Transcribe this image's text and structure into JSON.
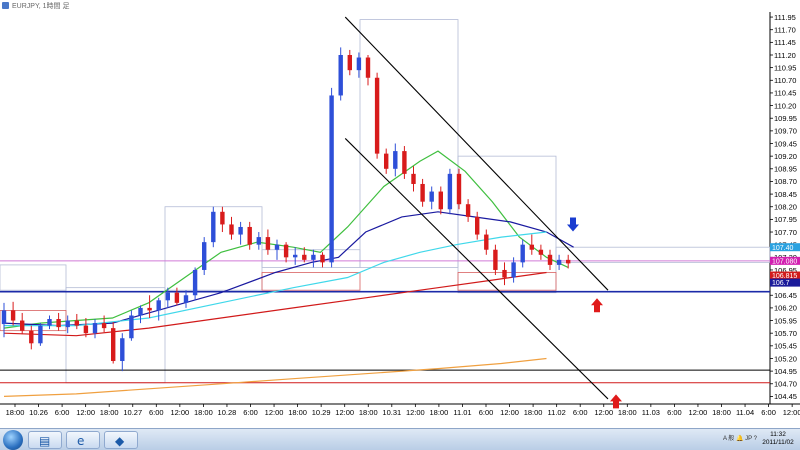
{
  "window": {
    "title": "EURJPY, 1時間 足"
  },
  "chart_data": {
    "type": "candlestick",
    "symbol": "EURJPY",
    "timeframe": "1時間",
    "y_range": [
      104.3,
      112.05
    ],
    "price_labels": [
      "111.95",
      "111.70",
      "111.45",
      "111.20",
      "110.95",
      "110.70",
      "110.45",
      "110.20",
      "109.95",
      "109.70",
      "109.45",
      "109.20",
      "108.95",
      "108.70",
      "108.45",
      "108.20",
      "107.95",
      "107.70",
      "107.45",
      "107.20",
      "106.95",
      "106.70",
      "106.45",
      "106.20",
      "105.95",
      "105.70",
      "105.45",
      "105.20",
      "104.95",
      "104.70",
      "104.45"
    ],
    "time_labels": [
      "18:00",
      "10.26",
      "6:00",
      "12:00",
      "18:00",
      "10.27",
      "6:00",
      "12:00",
      "18:00",
      "10.28",
      "6:00",
      "12:00",
      "18:00",
      "10.29",
      "12:00",
      "18:00",
      "10.31",
      "12:00",
      "18:00",
      "11.01",
      "6:00",
      "12:00",
      "18:00",
      "11.02",
      "6:00",
      "12:00",
      "18:00",
      "11.03",
      "6:00",
      "12:00",
      "18:00",
      "11.04",
      "6:00",
      "12:00"
    ],
    "current_price_tags": [
      {
        "text": "107.40",
        "price": 107.4,
        "color": "#2ba2e0"
      },
      {
        "text": "107.080",
        "price": 107.13,
        "color": "#d21fb0"
      },
      {
        "text": "106.815",
        "price": 106.84,
        "color": "#d11a1a"
      },
      {
        "text": "106.7",
        "price": 106.7,
        "color": "#1b1b9a"
      }
    ],
    "horizontal_lines": [
      {
        "price": 107.13,
        "color": "#d07ad6"
      },
      {
        "price": 106.52,
        "color": "#1b2aa8"
      },
      {
        "price": 104.97,
        "color": "#000000"
      },
      {
        "price": 104.72,
        "color": "#d11a1a"
      }
    ],
    "candles": [
      {
        "o": 105.88,
        "h": 106.3,
        "l": 105.62,
        "c": 106.15
      },
      {
        "o": 106.15,
        "h": 106.32,
        "l": 105.85,
        "c": 105.95
      },
      {
        "o": 105.95,
        "h": 106.1,
        "l": 105.68,
        "c": 105.75
      },
      {
        "o": 105.75,
        "h": 105.85,
        "l": 105.38,
        "c": 105.5
      },
      {
        "o": 105.5,
        "h": 105.9,
        "l": 105.45,
        "c": 105.85
      },
      {
        "o": 105.85,
        "h": 106.05,
        "l": 105.78,
        "c": 105.98
      },
      {
        "o": 105.98,
        "h": 106.1,
        "l": 105.75,
        "c": 105.82
      },
      {
        "o": 105.82,
        "h": 106.05,
        "l": 105.7,
        "c": 105.95
      },
      {
        "o": 105.95,
        "h": 106.08,
        "l": 105.78,
        "c": 105.85
      },
      {
        "o": 105.85,
        "h": 106.0,
        "l": 105.62,
        "c": 105.7
      },
      {
        "o": 105.7,
        "h": 105.98,
        "l": 105.6,
        "c": 105.9
      },
      {
        "o": 105.9,
        "h": 106.05,
        "l": 105.72,
        "c": 105.8
      },
      {
        "o": 105.8,
        "h": 105.92,
        "l": 105.1,
        "c": 105.15
      },
      {
        "o": 105.15,
        "h": 105.7,
        "l": 104.95,
        "c": 105.6
      },
      {
        "o": 105.6,
        "h": 106.15,
        "l": 105.55,
        "c": 106.05
      },
      {
        "o": 106.05,
        "h": 106.25,
        "l": 105.9,
        "c": 106.2
      },
      {
        "o": 106.2,
        "h": 106.45,
        "l": 106.0,
        "c": 106.15
      },
      {
        "o": 106.15,
        "h": 106.4,
        "l": 105.95,
        "c": 106.35
      },
      {
        "o": 106.35,
        "h": 106.6,
        "l": 106.2,
        "c": 106.5
      },
      {
        "o": 106.5,
        "h": 106.6,
        "l": 106.25,
        "c": 106.3
      },
      {
        "o": 106.3,
        "h": 106.55,
        "l": 106.2,
        "c": 106.45
      },
      {
        "o": 106.45,
        "h": 107.0,
        "l": 106.35,
        "c": 106.95
      },
      {
        "o": 106.95,
        "h": 107.6,
        "l": 106.85,
        "c": 107.5
      },
      {
        "o": 107.5,
        "h": 108.2,
        "l": 107.4,
        "c": 108.1
      },
      {
        "o": 108.1,
        "h": 108.2,
        "l": 107.7,
        "c": 107.85
      },
      {
        "o": 107.85,
        "h": 108.0,
        "l": 107.55,
        "c": 107.65
      },
      {
        "o": 107.65,
        "h": 107.9,
        "l": 107.45,
        "c": 107.8
      },
      {
        "o": 107.8,
        "h": 107.9,
        "l": 107.35,
        "c": 107.45
      },
      {
        "o": 107.45,
        "h": 107.7,
        "l": 107.35,
        "c": 107.6
      },
      {
        "o": 107.6,
        "h": 107.75,
        "l": 107.25,
        "c": 107.35
      },
      {
        "o": 107.35,
        "h": 107.55,
        "l": 107.15,
        "c": 107.45
      },
      {
        "o": 107.45,
        "h": 107.5,
        "l": 107.1,
        "c": 107.2
      },
      {
        "o": 107.2,
        "h": 107.4,
        "l": 107.05,
        "c": 107.25
      },
      {
        "o": 107.25,
        "h": 107.4,
        "l": 107.1,
        "c": 107.15
      },
      {
        "o": 107.15,
        "h": 107.35,
        "l": 107.0,
        "c": 107.25
      },
      {
        "o": 107.25,
        "h": 107.3,
        "l": 107.0,
        "c": 107.1
      },
      {
        "o": 107.1,
        "h": 110.55,
        "l": 107.0,
        "c": 110.4
      },
      {
        "o": 110.4,
        "h": 111.35,
        "l": 110.3,
        "c": 111.2
      },
      {
        "o": 111.2,
        "h": 111.3,
        "l": 110.8,
        "c": 110.9
      },
      {
        "o": 110.9,
        "h": 111.25,
        "l": 110.75,
        "c": 111.15
      },
      {
        "o": 111.15,
        "h": 111.2,
        "l": 110.6,
        "c": 110.75
      },
      {
        "o": 110.75,
        "h": 110.85,
        "l": 109.15,
        "c": 109.25
      },
      {
        "o": 109.25,
        "h": 109.35,
        "l": 108.85,
        "c": 108.95
      },
      {
        "o": 108.95,
        "h": 109.45,
        "l": 108.8,
        "c": 109.3
      },
      {
        "o": 109.3,
        "h": 109.4,
        "l": 108.75,
        "c": 108.85
      },
      {
        "o": 108.85,
        "h": 109.0,
        "l": 108.5,
        "c": 108.65
      },
      {
        "o": 108.65,
        "h": 108.75,
        "l": 108.2,
        "c": 108.3
      },
      {
        "o": 108.3,
        "h": 108.6,
        "l": 108.15,
        "c": 108.5
      },
      {
        "o": 108.5,
        "h": 108.6,
        "l": 108.05,
        "c": 108.15
      },
      {
        "o": 108.15,
        "h": 108.95,
        "l": 108.05,
        "c": 108.85
      },
      {
        "o": 108.85,
        "h": 108.95,
        "l": 108.15,
        "c": 108.25
      },
      {
        "o": 108.25,
        "h": 108.35,
        "l": 107.9,
        "c": 108.0
      },
      {
        "o": 108.0,
        "h": 108.1,
        "l": 107.55,
        "c": 107.65
      },
      {
        "o": 107.65,
        "h": 107.75,
        "l": 107.25,
        "c": 107.35
      },
      {
        "o": 107.35,
        "h": 107.45,
        "l": 106.85,
        "c": 106.95
      },
      {
        "o": 106.95,
        "h": 107.1,
        "l": 106.65,
        "c": 106.8
      },
      {
        "o": 106.8,
        "h": 107.2,
        "l": 106.7,
        "c": 107.1
      },
      {
        "o": 107.1,
        "h": 107.55,
        "l": 107.0,
        "c": 107.45
      },
      {
        "o": 107.45,
        "h": 107.65,
        "l": 107.25,
        "c": 107.35
      },
      {
        "o": 107.35,
        "h": 107.45,
        "l": 107.15,
        "c": 107.25
      },
      {
        "o": 107.25,
        "h": 107.35,
        "l": 106.95,
        "c": 107.05
      },
      {
        "o": 107.05,
        "h": 107.25,
        "l": 106.95,
        "c": 107.15
      },
      {
        "o": 107.15,
        "h": 107.25,
        "l": 106.98,
        "c": 107.08
      }
    ],
    "moving_averages": [
      {
        "color": "#3fbf3f",
        "points": [
          [
            0,
            105.8
          ],
          [
            20,
            105.9
          ],
          [
            40,
            105.95
          ],
          [
            60,
            106.0
          ],
          [
            80,
            106.3
          ],
          [
            100,
            106.8
          ],
          [
            120,
            107.3
          ],
          [
            140,
            107.5
          ],
          [
            160,
            107.4
          ],
          [
            175,
            107.3
          ],
          [
            190,
            107.8
          ],
          [
            210,
            108.6
          ],
          [
            230,
            109.1
          ],
          [
            240,
            109.3
          ],
          [
            255,
            108.9
          ],
          [
            270,
            108.3
          ],
          [
            285,
            107.6
          ],
          [
            300,
            107.2
          ],
          [
            312,
            107.0
          ]
        ]
      },
      {
        "color": "#1a1aa0",
        "points": [
          [
            0,
            105.9
          ],
          [
            30,
            105.85
          ],
          [
            60,
            105.9
          ],
          [
            90,
            106.2
          ],
          [
            120,
            106.5
          ],
          [
            150,
            106.9
          ],
          [
            170,
            107.1
          ],
          [
            185,
            107.2
          ],
          [
            200,
            107.7
          ],
          [
            220,
            108.0
          ],
          [
            240,
            108.1
          ],
          [
            260,
            108.0
          ],
          [
            280,
            107.9
          ],
          [
            300,
            107.7
          ],
          [
            315,
            107.4
          ]
        ]
      },
      {
        "color": "#40d8ea",
        "points": [
          [
            0,
            105.85
          ],
          [
            40,
            105.85
          ],
          [
            80,
            106.0
          ],
          [
            120,
            106.3
          ],
          [
            160,
            106.6
          ],
          [
            190,
            106.8
          ],
          [
            210,
            107.1
          ],
          [
            230,
            107.3
          ],
          [
            250,
            107.45
          ],
          [
            275,
            107.6
          ],
          [
            300,
            107.7
          ]
        ]
      },
      {
        "color": "#d11a1a",
        "points": [
          [
            0,
            105.7
          ],
          [
            40,
            105.65
          ],
          [
            80,
            105.8
          ],
          [
            120,
            106.0
          ],
          [
            160,
            106.2
          ],
          [
            200,
            106.4
          ],
          [
            240,
            106.6
          ],
          [
            270,
            106.75
          ],
          [
            300,
            106.9
          ]
        ]
      },
      {
        "color": "#f0a040",
        "points": [
          [
            0,
            104.45
          ],
          [
            40,
            104.5
          ],
          [
            80,
            104.6
          ],
          [
            120,
            104.7
          ],
          [
            160,
            104.8
          ],
          [
            200,
            104.9
          ],
          [
            240,
            105.0
          ],
          [
            275,
            105.1
          ],
          [
            300,
            105.2
          ]
        ]
      }
    ],
    "arrows": [
      {
        "type": "down",
        "color": "#1a3cd0",
        "price": 107.75
      },
      {
        "type": "up",
        "color": "#e01a1a",
        "price": 106.35
      },
      {
        "type": "up",
        "color": "#e01a1a",
        "price": 104.45
      }
    ]
  },
  "taskbar": {
    "start_icon": "windows-start-icon",
    "buttons": [
      {
        "name": "explorer-icon",
        "glyph": "▤"
      },
      {
        "name": "internet-explorer-icon",
        "glyph": "e"
      },
      {
        "name": "chart-app-icon",
        "glyph": "◆"
      }
    ],
    "tray_text": "A 般 🔔 JP ?",
    "clock_time": "11:32",
    "clock_date": "2011/11/02"
  }
}
